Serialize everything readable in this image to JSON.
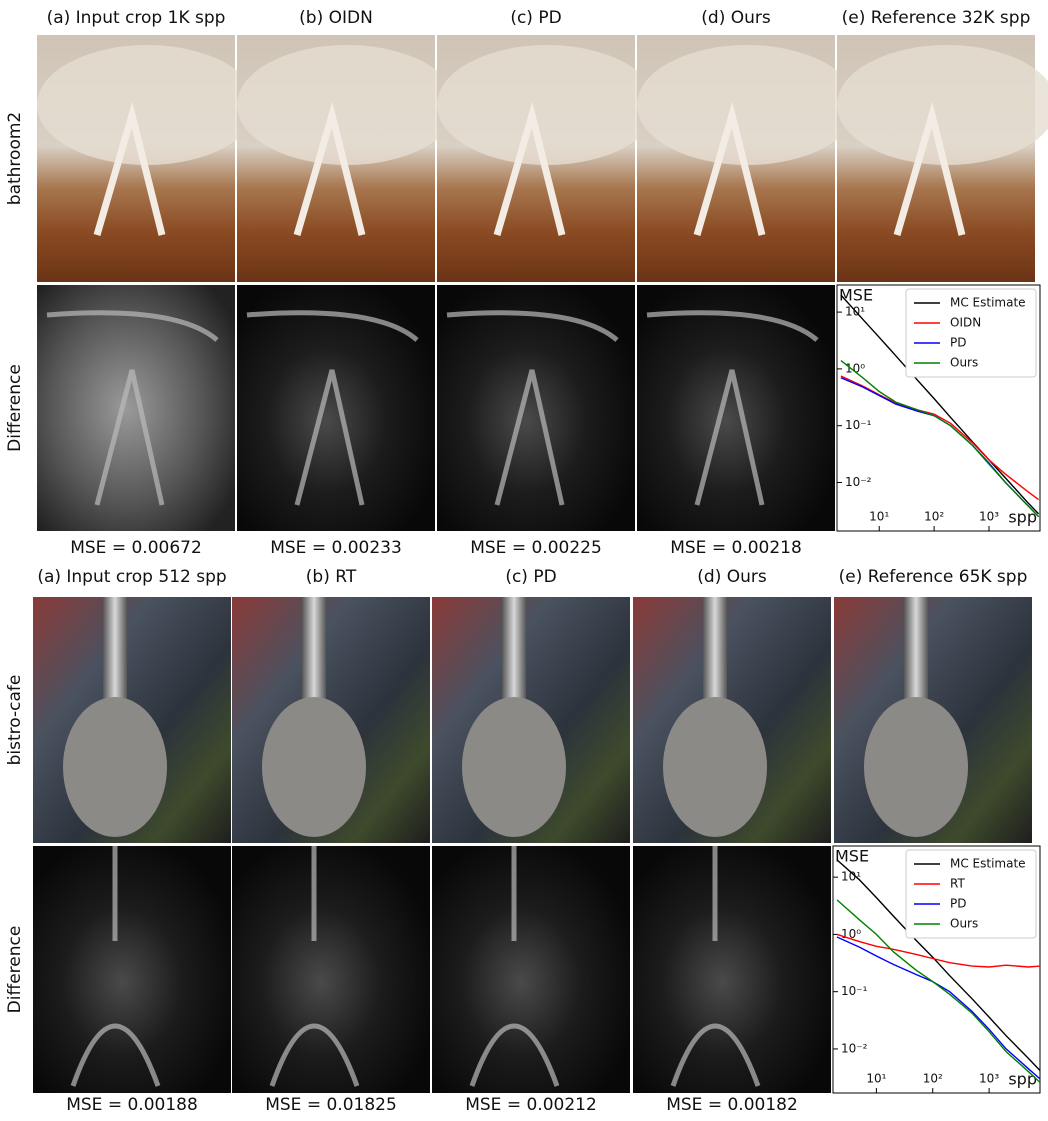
{
  "panels": [
    {
      "row_labels": [
        "bathroom2",
        "Difference"
      ],
      "column_titles": [
        "(a) Input crop 1K spp",
        "(b) OIDN",
        "(c) PD",
        "(d) Ours",
        "(e) Reference 32K spp"
      ],
      "mse_labels": [
        "MSE = 0.00672",
        "MSE = 0.00233",
        "MSE = 0.00225",
        "MSE =  0.00218"
      ]
    },
    {
      "row_labels": [
        "bistro-cafe",
        "Difference"
      ],
      "column_titles": [
        "(a) Input crop 512 spp",
        "(b) RT",
        "(c) PD",
        "(d) Ours",
        "(e) Reference 65K spp"
      ],
      "mse_labels": [
        "MSE = 0.00188",
        "MSE = 0.01825",
        "MSE = 0.00212",
        "MSE = 0.00182"
      ]
    }
  ],
  "chart_data": [
    {
      "type": "line",
      "xlabel": "spp",
      "ylabel": "MSE",
      "log_x": true,
      "log_y": true,
      "legend": "upper right",
      "xlim": [
        1.7,
        8500
      ],
      "ylim": [
        0.0014,
        30
      ],
      "xticks": [
        {
          "value": 10,
          "label": "10¹"
        },
        {
          "value": 100,
          "label": "10²"
        },
        {
          "value": 1000,
          "label": "10³"
        }
      ],
      "yticks": [
        {
          "value": 10,
          "label": "10¹"
        },
        {
          "value": 1,
          "label": "10⁰"
        },
        {
          "value": 0.1,
          "label": "10⁻¹"
        },
        {
          "value": 0.01,
          "label": "10⁻²"
        }
      ],
      "x": [
        2,
        5,
        10,
        20,
        50,
        100,
        200,
        500,
        1000,
        2000,
        5000,
        8000
      ],
      "series": [
        {
          "name": "MC Estimate",
          "color": "#000000",
          "values": [
            20,
            7.5,
            3.6,
            1.7,
            0.63,
            0.3,
            0.14,
            0.052,
            0.025,
            0.012,
            0.0045,
            0.0028
          ]
        },
        {
          "name": "OIDN",
          "color": "#ff0000",
          "values": [
            0.75,
            0.5,
            0.35,
            0.25,
            0.19,
            0.16,
            0.11,
            0.05,
            0.025,
            0.014,
            0.007,
            0.005
          ]
        },
        {
          "name": "PD",
          "color": "#0000ff",
          "values": [
            0.7,
            0.48,
            0.34,
            0.24,
            0.18,
            0.15,
            0.1,
            0.045,
            0.022,
            0.01,
            0.004,
            0.0025
          ]
        },
        {
          "name": "Ours",
          "color": "#008000",
          "values": [
            1.4,
            0.7,
            0.4,
            0.26,
            0.19,
            0.15,
            0.1,
            0.045,
            0.021,
            0.01,
            0.004,
            0.0025
          ]
        }
      ]
    },
    {
      "type": "line",
      "xlabel": "spp",
      "ylabel": "MSE",
      "log_x": true,
      "log_y": true,
      "legend": "upper right",
      "xlim": [
        1.7,
        8000
      ],
      "ylim": [
        0.0017,
        35
      ],
      "xticks": [
        {
          "value": 10,
          "label": "10¹"
        },
        {
          "value": 100,
          "label": "10²"
        },
        {
          "value": 1000,
          "label": "10³"
        }
      ],
      "yticks": [
        {
          "value": 10,
          "label": "10¹"
        },
        {
          "value": 1,
          "label": "10⁰"
        },
        {
          "value": 0.1,
          "label": "10⁻¹"
        },
        {
          "value": 0.01,
          "label": "10⁻²"
        }
      ],
      "x": [
        2,
        5,
        10,
        20,
        50,
        100,
        200,
        500,
        1000,
        2000,
        5000,
        8000
      ],
      "series": [
        {
          "name": "MC Estimate",
          "color": "#000000",
          "values": [
            20,
            9,
            4.4,
            2.1,
            0.8,
            0.4,
            0.19,
            0.075,
            0.036,
            0.017,
            0.0068,
            0.0042
          ]
        },
        {
          "name": "RT",
          "color": "#ff0000",
          "values": [
            1.0,
            0.75,
            0.62,
            0.55,
            0.45,
            0.38,
            0.32,
            0.28,
            0.27,
            0.29,
            0.27,
            0.28
          ]
        },
        {
          "name": "PD",
          "color": "#0000ff",
          "values": [
            0.9,
            0.6,
            0.42,
            0.3,
            0.2,
            0.15,
            0.1,
            0.045,
            0.022,
            0.01,
            0.0045,
            0.003
          ]
        },
        {
          "name": "Ours",
          "color": "#008000",
          "values": [
            4,
            1.8,
            1.0,
            0.5,
            0.24,
            0.15,
            0.09,
            0.042,
            0.02,
            0.009,
            0.004,
            0.0026
          ]
        }
      ]
    }
  ]
}
